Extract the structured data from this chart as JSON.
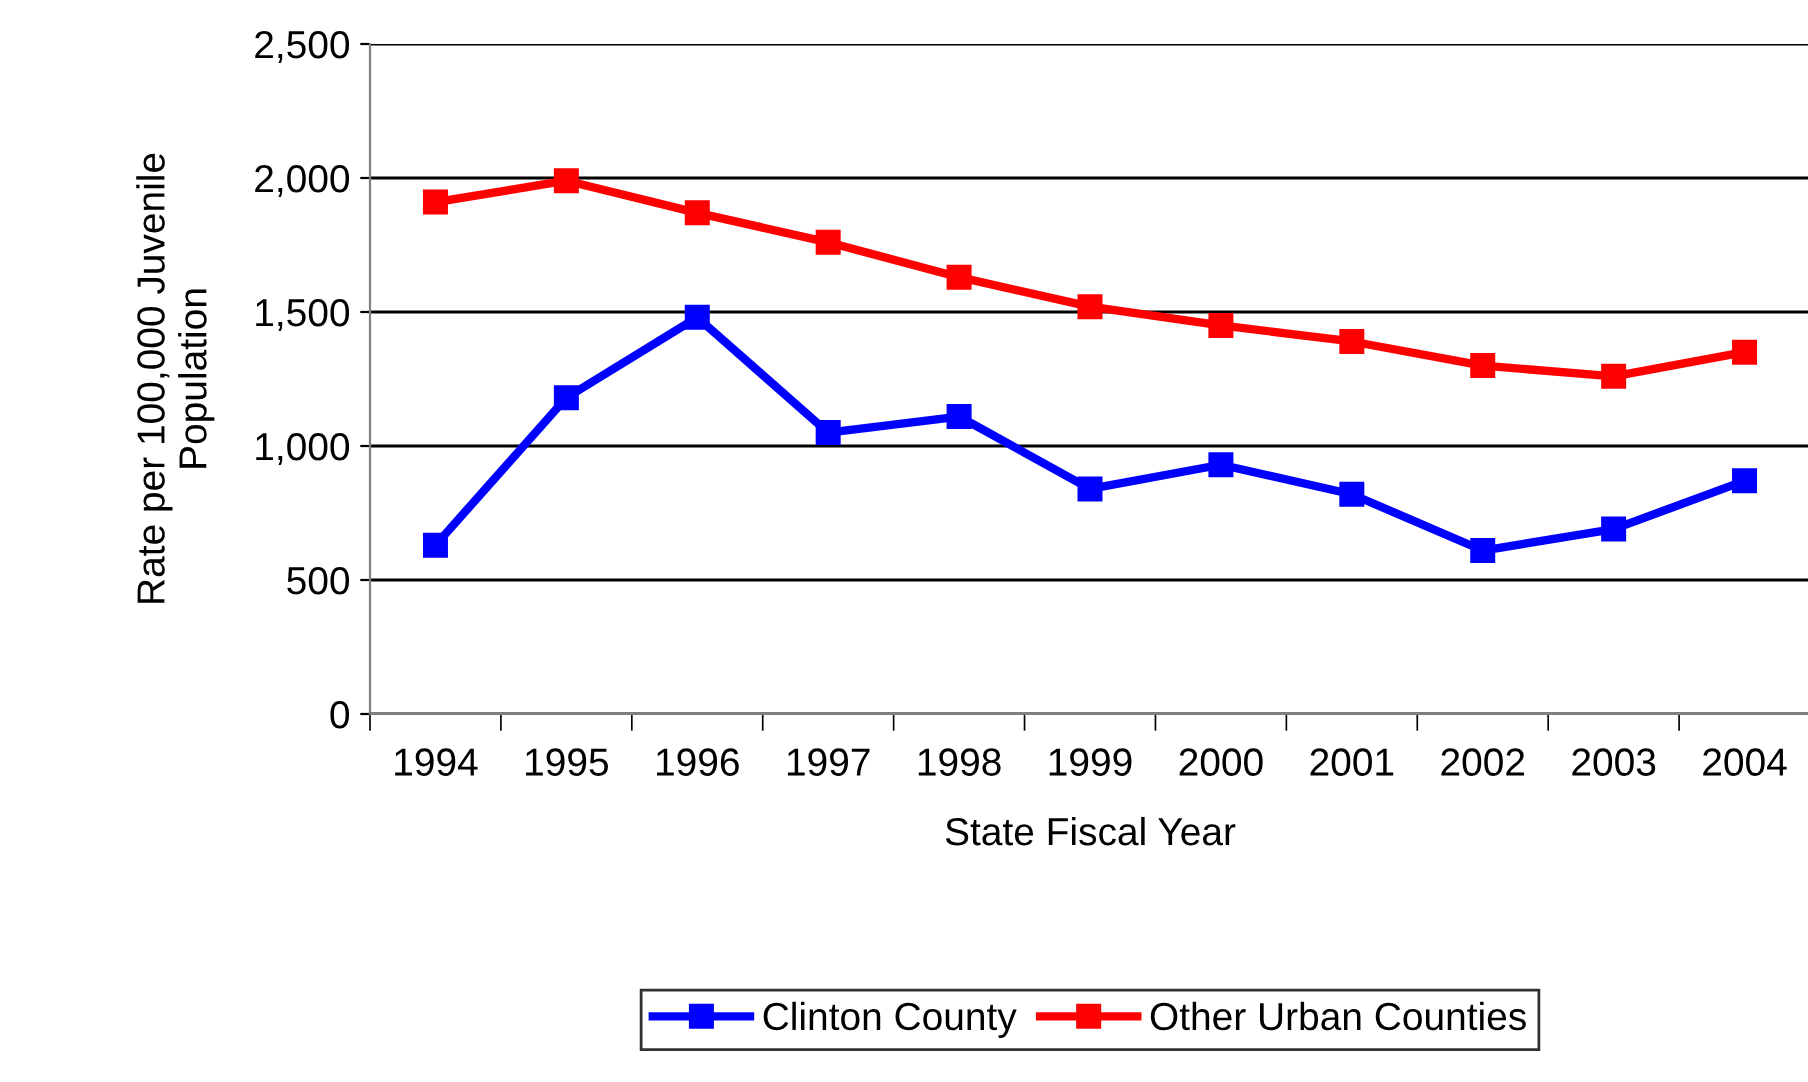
{
  "chart_data": {
    "type": "line",
    "xlabel": "State Fiscal Year",
    "ylabel": "Rate per 100,000 Juvenile\nPopulation",
    "categories": [
      "1994",
      "1995",
      "1996",
      "1997",
      "1998",
      "1999",
      "2000",
      "2001",
      "2002",
      "2003",
      "2004"
    ],
    "series": [
      {
        "name": "Clinton County",
        "color": "#0000ff",
        "values": [
          630,
          1180,
          1480,
          1050,
          1110,
          840,
          930,
          820,
          610,
          690,
          870
        ]
      },
      {
        "name": "Other Urban Counties",
        "color": "#ff0000",
        "values": [
          1910,
          1990,
          1870,
          1760,
          1630,
          1520,
          1450,
          1390,
          1300,
          1260,
          1350
        ]
      }
    ],
    "ylim": [
      0,
      2500
    ],
    "yticks": [
      0,
      {
        "value": 500,
        "label": "500"
      },
      {
        "value": 1000,
        "label": "1,000"
      },
      {
        "value": 1500,
        "label": "1,500"
      },
      {
        "value": 2000,
        "label": "2,000"
      },
      {
        "value": 2500,
        "label": "2,500"
      }
    ],
    "grid": "y",
    "legend": "bottom",
    "marker": "square",
    "line_style": "solid"
  }
}
